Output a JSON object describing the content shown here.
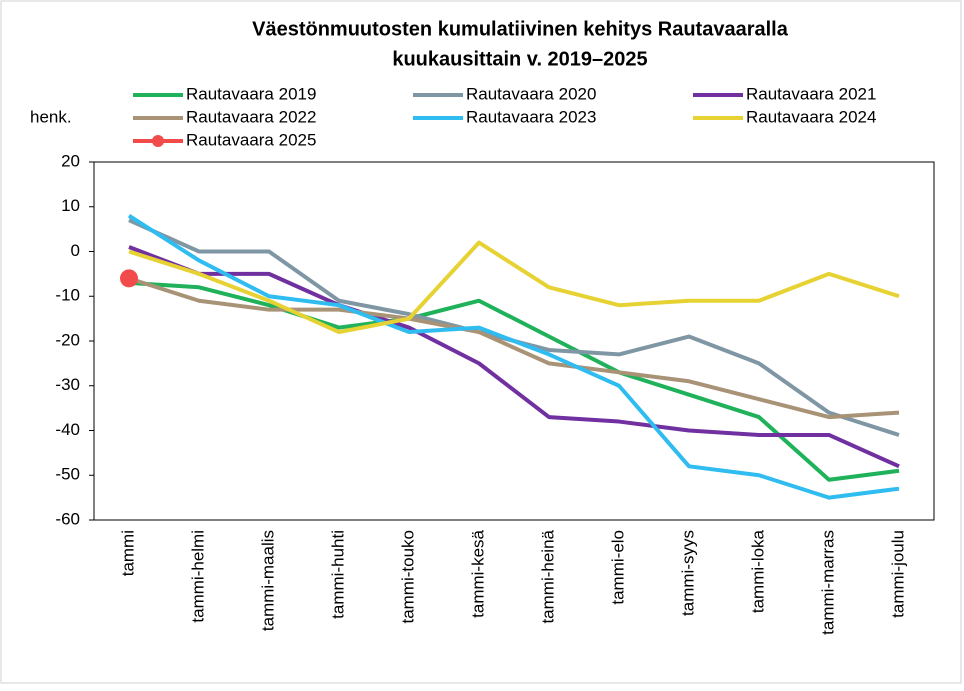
{
  "chart_data": {
    "type": "line",
    "title": [
      "Väestönmuutosten kumulatiivinen kehitys Rautavaaralla",
      "kuukausittain v. 2019–2025"
    ],
    "y_label": "henk.",
    "categories": [
      "tammi",
      "tammi-helmi",
      "tammi-maalis",
      "tammi-huhti",
      "tammi-touko",
      "tammi-kesä",
      "tammi-heinä",
      "tammi-elo",
      "tammi-syys",
      "tammi-loka",
      "tammi-marras",
      "tammi-joulu"
    ],
    "series": [
      {
        "name": "Rautavaara 2019",
        "color": "#1fb25a",
        "values": [
          -7,
          -8,
          -12,
          -17,
          -15,
          -11,
          -19,
          -27,
          -32,
          -37,
          -51,
          -49
        ]
      },
      {
        "name": "Rautavaara 2020",
        "color": "#7f96a4",
        "values": [
          7,
          0,
          0,
          -11,
          -14,
          -18,
          -22,
          -23,
          -19,
          -25,
          -36,
          -41
        ]
      },
      {
        "name": "Rautavaara 2021",
        "color": "#7030a0",
        "values": [
          1,
          -5,
          -5,
          -12,
          -17,
          -25,
          -37,
          -38,
          -40,
          -41,
          -41,
          -48
        ]
      },
      {
        "name": "Rautavaara 2022",
        "color": "#a99377",
        "values": [
          -6,
          -11,
          -13,
          -13,
          -15,
          -18,
          -25,
          -27,
          -29,
          -33,
          -37,
          -36
        ]
      },
      {
        "name": "Rautavaara 2023",
        "color": "#2fbcf0",
        "values": [
          8,
          -2,
          -10,
          -12,
          -18,
          -17,
          -23,
          -30,
          -48,
          -50,
          -55,
          -53
        ]
      },
      {
        "name": "Rautavaara 2024",
        "color": "#e6d232",
        "values": [
          0,
          -5,
          -11,
          -18,
          -15,
          2,
          -8,
          -12,
          -11,
          -11,
          -5,
          -10
        ]
      },
      {
        "name": "Rautavaara 2025",
        "color": "#f14b4b",
        "marker": true,
        "values": [
          -6,
          null,
          null,
          null,
          null,
          null,
          null,
          null,
          null,
          null,
          null,
          null
        ]
      }
    ],
    "ylim": [
      -60,
      20
    ],
    "yticks": [
      -60,
      -50,
      -40,
      -30,
      -20,
      -10,
      0,
      10,
      20
    ],
    "grid": false
  }
}
